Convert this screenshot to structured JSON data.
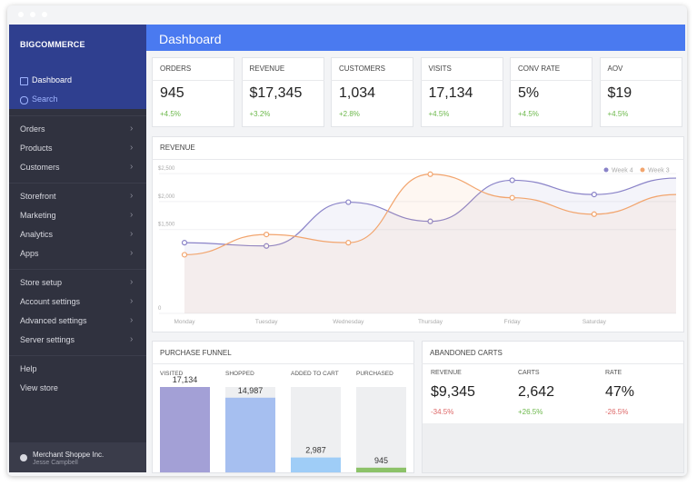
{
  "sidebar": {
    "brand": "BIGCOMMERCE",
    "top": [
      "Dashboard",
      "Search"
    ],
    "groups": [
      [
        "Orders",
        "Products",
        "Customers"
      ],
      [
        "Storefront",
        "Marketing",
        "Analytics",
        "Apps"
      ],
      [
        "Store setup",
        "Account settings",
        "Advanced settings",
        "Server settings"
      ],
      [
        "Help",
        "View store"
      ]
    ],
    "account": {
      "name": "Merchant Shoppe Inc.",
      "user": "Jesse Campbell"
    }
  },
  "header": {
    "title": "Dashboard"
  },
  "kpis": [
    {
      "label": "ORDERS",
      "value": "945",
      "change": "+4.5%"
    },
    {
      "label": "REVENUE",
      "value": "$17,345",
      "change": "+3.2%"
    },
    {
      "label": "CUSTOMERS",
      "value": "1,034",
      "change": "+2.8%"
    },
    {
      "label": "VISITS",
      "value": "17,134",
      "change": "+4.5%"
    },
    {
      "label": "CONV RATE",
      "value": "5%",
      "change": "+4.5%"
    },
    {
      "label": "AOV",
      "value": "$19",
      "change": "+4.5%"
    }
  ],
  "chart_data": [
    {
      "type": "line",
      "title": "REVENUE",
      "categories": [
        "Monday",
        "Tuesday",
        "Wednesday",
        "Thursday",
        "Friday",
        "Saturday",
        null
      ],
      "series": [
        {
          "name": "Week 4",
          "color": "#8a83c8",
          "values": [
            1265,
            1206,
            1990,
            1647,
            2382,
            2127,
            2420
          ]
        },
        {
          "name": "Week 3",
          "color": "#f2a56e",
          "values": [
            1049,
            1412,
            1265,
            2490,
            2069,
            1775,
            2127
          ]
        }
      ],
      "ylim": [
        0,
        2600
      ],
      "yticks": [
        {
          "value": 2500,
          "label": "$2,500"
        },
        {
          "value": 2000,
          "label": "$2,000"
        },
        {
          "value": 1500,
          "label": "$1,500"
        },
        0
      ],
      "legend": "top-right"
    },
    {
      "type": "bar",
      "title": "PURCHASE FUNNEL",
      "categories": [
        "VISITED",
        "SHOPPED",
        "ADDED TO CART",
        "PURCHASED"
      ],
      "values": [
        17134,
        14987,
        2987,
        945
      ],
      "value_labels": [
        "17,134",
        "14,987",
        "2,987",
        "945"
      ],
      "colors": [
        "#a3a0d6",
        "#a6bff0",
        "#9fcdf7",
        "#8cc269"
      ]
    }
  ],
  "abandoned_carts": {
    "title": "ABANDONED CARTS",
    "metrics": [
      {
        "label": "REVENUE",
        "value": "$9,345",
        "change": "-34.5%"
      },
      {
        "label": "CARTS",
        "value": "2,642",
        "change": "+26.5%"
      },
      {
        "label": "RATE",
        "value": "47%",
        "change": "-26.5%"
      }
    ]
  }
}
